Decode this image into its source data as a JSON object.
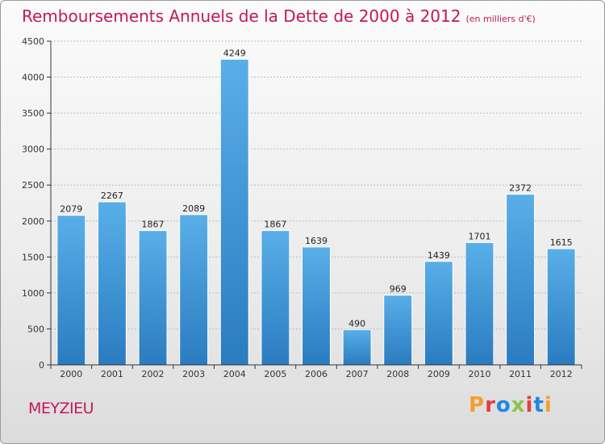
{
  "header": {
    "title": "Remboursements Annuels de la Dette de 2000 à 2012",
    "subtitle": "(en milliers d'€)"
  },
  "footer": {
    "city": "MEYZIEU",
    "brand": "Proxiti",
    "brand_colors": [
      "#f0a030",
      "#e04040",
      "#1e88e5",
      "#8bc34a",
      "#e04040",
      "#1e88e5",
      "#f0a030"
    ]
  },
  "colors": {
    "bar_top": "#5aaee8",
    "bar_bottom": "#2a7cc0",
    "axis": "#333333",
    "grid": "#bdbdbd"
  },
  "chart_data": {
    "type": "bar",
    "categories": [
      "2000",
      "2001",
      "2002",
      "2003",
      "2004",
      "2005",
      "2006",
      "2007",
      "2008",
      "2009",
      "2010",
      "2011",
      "2012"
    ],
    "values": [
      2079,
      2267,
      1867,
      2089,
      4249,
      1867,
      1639,
      490,
      969,
      1439,
      1701,
      2372,
      1615
    ],
    "ylim": [
      0,
      4500
    ],
    "yticks": [
      0,
      500,
      1000,
      1500,
      2000,
      2500,
      3000,
      3500,
      4000,
      4500
    ],
    "grid": true,
    "data_labels": true
  }
}
